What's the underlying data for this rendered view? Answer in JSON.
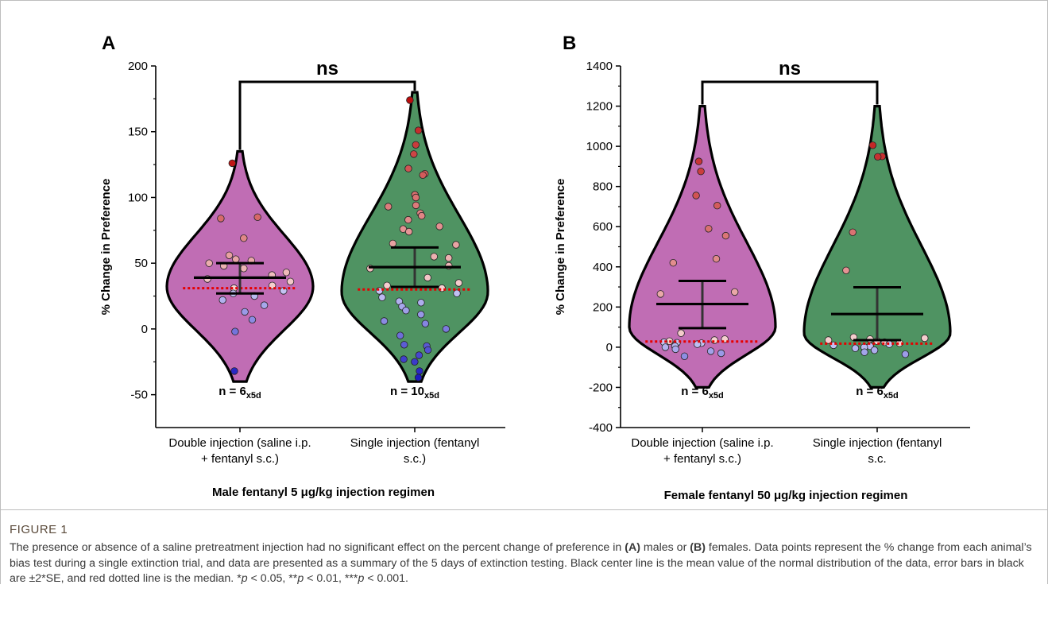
{
  "figure": {
    "label": "FIGURE 1",
    "caption_parts": [
      {
        "t": "The presence or absence of a saline pretreatment injection had no significant effect on the percent change of preference in ",
        "b": false
      },
      {
        "t": "(A)",
        "b": true
      },
      {
        "t": " males or ",
        "b": false
      },
      {
        "t": "(B)",
        "b": true
      },
      {
        "t": " females. Data points represent the % change from each animal’s bias test during a single extinction trial, and data are presented as a summary of the 5 days of extinction testing. Black center line is the mean value of the normal distribution of the data, error bars in black are ±2*SE, and red dotted line is the median. *",
        "b": false
      },
      {
        "t": "p",
        "i": true
      },
      {
        "t": " < 0.05, **",
        "b": false
      },
      {
        "t": "p",
        "i": true
      },
      {
        "t": " < 0.01, ***",
        "b": false
      },
      {
        "t": "p",
        "i": true
      },
      {
        "t": " < 0.001.",
        "b": false
      }
    ]
  },
  "colors": {
    "violin_double": "#c06db4",
    "violin_single": "#4f9362",
    "median_line": "#e60000",
    "stat_lines": "#000000"
  },
  "chart_data": [
    {
      "type": "violin",
      "panel_label": "A",
      "title": "Male fentanyl 5 μg/kg injection regimen",
      "ylabel": "% Change in Preference",
      "ylim": [
        -75,
        200
      ],
      "yticks": [
        -50,
        0,
        50,
        100,
        150,
        200
      ],
      "significance": "ns",
      "groups": [
        {
          "label": [
            "Double injection (saline i.p.",
            "+ fentanyl s.c.)"
          ],
          "n_text": {
            "n": "n = 6",
            "sub": "x5d"
          },
          "color_key": "violin_double",
          "range": [
            -40,
            135
          ],
          "mode": 32,
          "mean": 39,
          "se_upper": 50,
          "se_lower": 27,
          "median": 31,
          "points": [
            126,
            85,
            84,
            69,
            56,
            53,
            52,
            50,
            48,
            46,
            43,
            41,
            38,
            36,
            33,
            31,
            29,
            27,
            25,
            22,
            18,
            13,
            7,
            -2,
            -32
          ]
        },
        {
          "label": [
            "Single injection (fentanyl",
            "s.c.)"
          ],
          "n_text": {
            "n": "n = 10",
            "sub": "x5d"
          },
          "color_key": "violin_single",
          "range": [
            -40,
            180
          ],
          "mode": 28,
          "mean": 47,
          "se_upper": 62,
          "se_lower": 32,
          "median": 30,
          "points": [
            174,
            151,
            140,
            133,
            122,
            118,
            117,
            102,
            100,
            94,
            93,
            88,
            86,
            83,
            78,
            76,
            74,
            65,
            64,
            55,
            54,
            48,
            46,
            39,
            35,
            33,
            31,
            29,
            27,
            24,
            21,
            20,
            17,
            14,
            11,
            6,
            4,
            0,
            -5,
            -12,
            -13,
            -16,
            -20,
            -23,
            -25,
            -32,
            -37
          ]
        }
      ]
    },
    {
      "type": "violin",
      "panel_label": "B",
      "title": "Female fentanyl 50 μg/kg injection regimen",
      "ylabel": "% Change in Preference",
      "ylim": [
        -400,
        1400
      ],
      "yticks": [
        -400,
        -200,
        0,
        200,
        400,
        600,
        800,
        1000,
        1200,
        1400
      ],
      "significance": "ns",
      "groups": [
        {
          "label": [
            "Double injection (saline i.p.",
            "+ fentanyl s.c.)"
          ],
          "n_text": {
            "n": "n = 6",
            "sub": "x5d"
          },
          "color_key": "violin_double",
          "range": [
            -200,
            1200
          ],
          "mode": 100,
          "mean": 215,
          "se_upper": 330,
          "se_lower": 95,
          "median": 28,
          "points": [
            925,
            875,
            755,
            705,
            590,
            555,
            440,
            420,
            275,
            265,
            70,
            40,
            35,
            30,
            25,
            22,
            20,
            15,
            5,
            0,
            -10,
            -20,
            -30,
            -45
          ]
        },
        {
          "label": [
            "Single injection (fentanyl",
            "s.c."
          ],
          "n_text": {
            "n": "n = 6",
            "sub": "x5d"
          },
          "color_key": "violin_single",
          "range": [
            -200,
            1200
          ],
          "mode": 70,
          "mean": 165,
          "se_upper": 298,
          "se_lower": 35,
          "median": 18,
          "points": [
            1005,
            950,
            948,
            572,
            382,
            50,
            45,
            40,
            35,
            30,
            25,
            20,
            15,
            10,
            5,
            0,
            -5,
            -15,
            -25,
            -35
          ]
        }
      ]
    }
  ]
}
